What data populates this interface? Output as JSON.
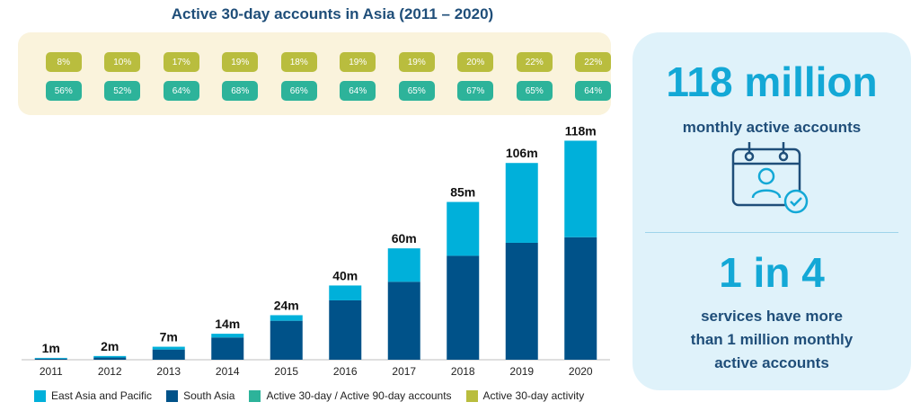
{
  "title": "Active 30-day accounts in Asia (2011 – 2020)",
  "colors": {
    "east_asia_pacific": "#00b0da",
    "south_asia": "#005289",
    "active_30_90": "#2db39a",
    "active_30_activity": "#b9bd3e",
    "highlight": "#13a8d6",
    "dark_text": "#1f4e79"
  },
  "chart_data": {
    "type": "bar",
    "stacked": true,
    "title": "Active 30-day accounts in Asia (2011 – 2020)",
    "categories": [
      "2011",
      "2012",
      "2013",
      "2014",
      "2015",
      "2016",
      "2017",
      "2018",
      "2019",
      "2020"
    ],
    "series": [
      {
        "name": "South Asia",
        "values": [
          0.6,
          1.2,
          5.5,
          12,
          21,
          32,
          42,
          56,
          63,
          66
        ]
      },
      {
        "name": "East Asia and Pacific",
        "values": [
          0.4,
          0.8,
          1.5,
          2,
          3,
          8,
          18,
          29,
          43,
          52
        ]
      }
    ],
    "totals_labels": [
      "1m",
      "2m",
      "7m",
      "14m",
      "24m",
      "40m",
      "60m",
      "85m",
      "106m",
      "118m"
    ],
    "ylim": [
      0,
      125
    ],
    "legend_position": "bottom",
    "grid": false,
    "ratio_series": [
      {
        "name": "Active 30-day activity",
        "labels": [
          "8%",
          "10%",
          "17%",
          "19%",
          "18%",
          "19%",
          "19%",
          "20%",
          "22%",
          "22%"
        ]
      },
      {
        "name": "Active 30-day / Active 90-day accounts",
        "labels": [
          "56%",
          "52%",
          "64%",
          "68%",
          "66%",
          "64%",
          "65%",
          "67%",
          "65%",
          "64%"
        ]
      }
    ]
  },
  "legend": [
    {
      "label": "East Asia and Pacific",
      "color": "#00b0da"
    },
    {
      "label": "South Asia",
      "color": "#005289"
    },
    {
      "label": "Active 30-day / Active 90-day accounts",
      "color": "#2db39a"
    },
    {
      "label": "Active 30-day activity",
      "color": "#b9bd3e"
    }
  ],
  "side_panel": {
    "headline": "118 million",
    "headline_caption": "monthly active accounts",
    "icon": "calendar-user-check-icon",
    "stat": "1 in 4",
    "stat_line1": "services have more",
    "stat_line2": "than 1 million monthly",
    "stat_line3": "active accounts"
  }
}
